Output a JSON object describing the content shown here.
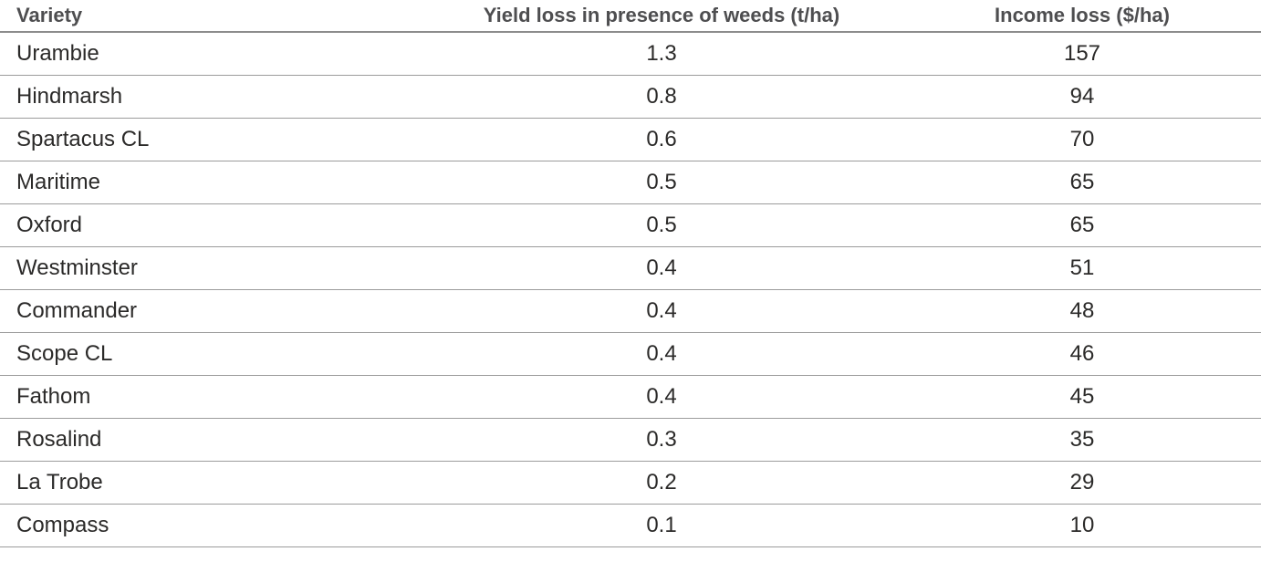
{
  "colors": {
    "background": "#ffffff",
    "header_text": "#4e4e50",
    "body_text": "#2b2a29",
    "header_rule": "#8c8c8c",
    "row_rule": "#9c9c9c"
  },
  "chart_data": {
    "type": "table",
    "title": "",
    "columns": [
      "Variety",
      "Yield loss in presence of weeds (t/ha)",
      "Income loss ($/ha)"
    ],
    "rows": [
      {
        "variety": "Urambie",
        "yield_loss": "1.3",
        "income_loss": "157"
      },
      {
        "variety": "Hindmarsh",
        "yield_loss": "0.8",
        "income_loss": "94"
      },
      {
        "variety": "Spartacus CL",
        "yield_loss": "0.6",
        "income_loss": "70"
      },
      {
        "variety": "Maritime",
        "yield_loss": "0.5",
        "income_loss": "65"
      },
      {
        "variety": "Oxford",
        "yield_loss": "0.5",
        "income_loss": "65"
      },
      {
        "variety": "Westminster",
        "yield_loss": "0.4",
        "income_loss": "51"
      },
      {
        "variety": "Commander",
        "yield_loss": "0.4",
        "income_loss": "48"
      },
      {
        "variety": "Scope CL",
        "yield_loss": "0.4",
        "income_loss": "46"
      },
      {
        "variety": "Fathom",
        "yield_loss": "0.4",
        "income_loss": "45"
      },
      {
        "variety": "Rosalind",
        "yield_loss": "0.3",
        "income_loss": "35"
      },
      {
        "variety": "La Trobe",
        "yield_loss": "0.2",
        "income_loss": "29"
      },
      {
        "variety": "Compass",
        "yield_loss": "0.1",
        "income_loss": "10"
      }
    ]
  }
}
